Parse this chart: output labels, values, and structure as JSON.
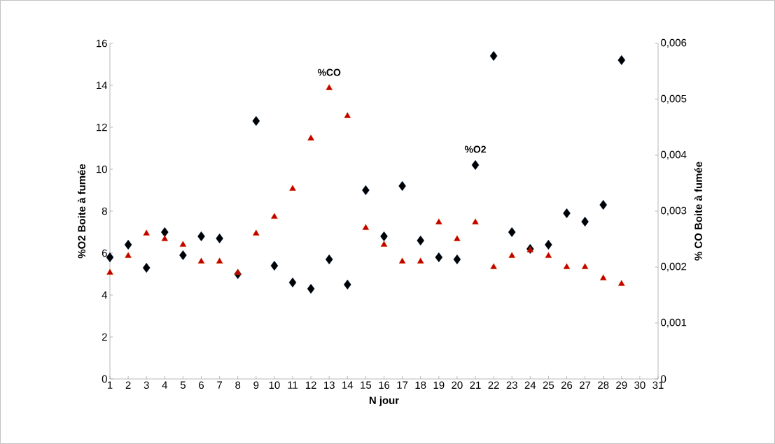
{
  "chart_data": {
    "type": "scatter",
    "xlabel": "N jour",
    "ylabel": "%O2 Boite à fumée",
    "y2label": "% CO Boite à fumée",
    "categories": [
      "1",
      "2",
      "3",
      "4",
      "5",
      "6",
      "7",
      "8",
      "9",
      "10",
      "11",
      "12",
      "13",
      "14",
      "15",
      "16",
      "17",
      "18",
      "19",
      "20",
      "21",
      "22",
      "23",
      "24",
      "25",
      "26",
      "27",
      "28",
      "29",
      "30",
      "31"
    ],
    "series": [
      {
        "name": "%O2",
        "color": "#000000",
        "marker": "diamond",
        "values": [
          5.8,
          6.4,
          5.3,
          7.0,
          5.9,
          6.8,
          6.7,
          5.0,
          12.3,
          5.4,
          4.6,
          4.3,
          5.7,
          4.5,
          9.0,
          6.8,
          9.2,
          6.6,
          5.8,
          5.7,
          10.2,
          15.4,
          7.0,
          6.2,
          6.4,
          7.9,
          7.5,
          8.3,
          15.2,
          null,
          null
        ]
      },
      {
        "name": "%CO",
        "color": "#c00000",
        "marker": "triangle",
        "axis": "y2",
        "values": [
          0.0019,
          0.0022,
          0.0026,
          0.0025,
          0.0024,
          0.0021,
          0.0021,
          0.0019,
          0.0026,
          0.0029,
          0.0034,
          0.0043,
          0.0052,
          0.0047,
          0.0027,
          0.0024,
          0.0021,
          0.0021,
          0.0028,
          0.0025,
          0.0028,
          0.002,
          0.0022,
          0.0023,
          0.0022,
          0.002,
          0.002,
          0.0018,
          0.0017,
          null,
          null
        ]
      }
    ],
    "ylim": [
      0,
      16
    ],
    "yticks": [
      0,
      2,
      4,
      6,
      8,
      10,
      12,
      14,
      16
    ],
    "y2lim": [
      0,
      0.006
    ],
    "y2ticks": [
      0,
      {
        "value": 0.001,
        "label": "0,001"
      },
      {
        "value": 0.002,
        "label": "0,002"
      },
      {
        "value": 0.003,
        "label": "0,003"
      },
      {
        "value": 0.004,
        "label": "0,004"
      },
      {
        "value": 0.005,
        "label": "0,005"
      },
      {
        "value": 0.006,
        "label": "0,006"
      }
    ],
    "grid": false
  }
}
